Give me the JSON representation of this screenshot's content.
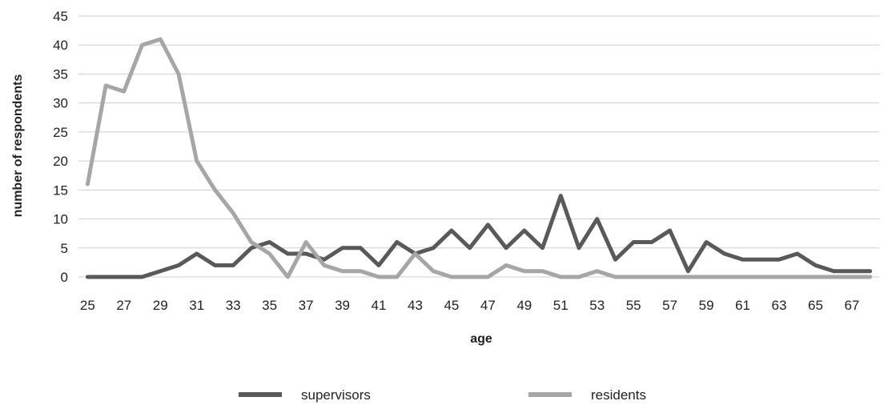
{
  "chart_data": {
    "type": "line",
    "title": "",
    "xlabel": "age",
    "ylabel": "number of respondents",
    "ylim": [
      0,
      45
    ],
    "yticks": [
      0,
      5,
      10,
      15,
      20,
      25,
      30,
      35,
      40,
      45
    ],
    "x": [
      25,
      26,
      27,
      28,
      29,
      30,
      31,
      32,
      33,
      34,
      35,
      36,
      37,
      38,
      39,
      40,
      41,
      42,
      43,
      44,
      45,
      46,
      47,
      48,
      49,
      50,
      51,
      52,
      53,
      54,
      55,
      56,
      57,
      58,
      59,
      60,
      61,
      62,
      63,
      64,
      65,
      66,
      67,
      68
    ],
    "xtick_labels": [
      "25",
      "27",
      "29",
      "31",
      "33",
      "35",
      "37",
      "39",
      "41",
      "43",
      "45",
      "47",
      "49",
      "51",
      "53",
      "55",
      "57",
      "59",
      "61",
      "63",
      "65",
      "67"
    ],
    "grid": true,
    "legend_position": "bottom",
    "series": [
      {
        "name": "supervisors",
        "color": "#595959",
        "values": [
          0,
          0,
          0,
          0,
          1,
          2,
          4,
          2,
          2,
          5,
          6,
          4,
          4,
          3,
          5,
          5,
          2,
          6,
          4,
          5,
          8,
          5,
          9,
          5,
          8,
          5,
          14,
          5,
          10,
          3,
          6,
          6,
          8,
          1,
          6,
          4,
          3,
          3,
          3,
          4,
          2,
          1,
          1,
          1
        ]
      },
      {
        "name": "residents",
        "color": "#a6a6a6",
        "values": [
          16,
          33,
          32,
          40,
          41,
          35,
          20,
          15,
          11,
          6,
          4,
          0,
          6,
          2,
          1,
          1,
          0,
          0,
          4,
          1,
          0,
          0,
          0,
          2,
          1,
          1,
          0,
          0,
          1,
          0,
          0,
          0,
          0,
          0,
          0,
          0,
          0,
          0,
          0,
          0,
          0,
          0,
          0,
          0
        ]
      }
    ]
  }
}
